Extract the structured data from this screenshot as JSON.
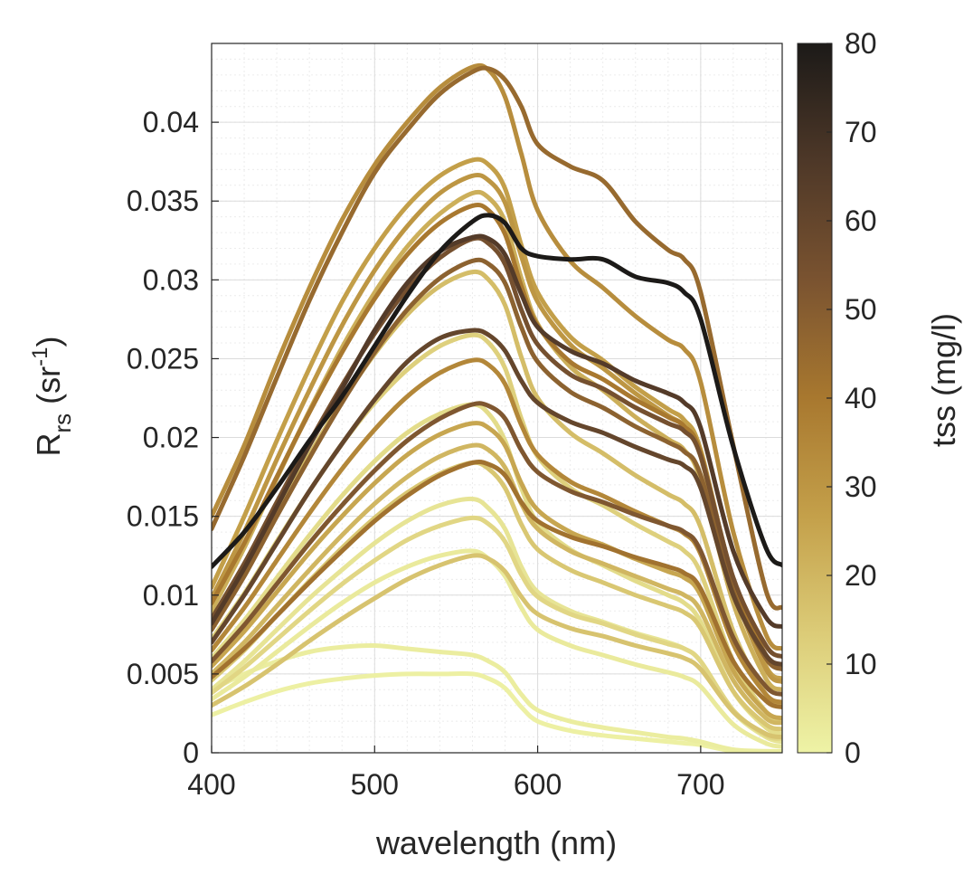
{
  "chart_data": {
    "type": "line",
    "x_label": "wavelength (nm)",
    "y_label_main": "R",
    "y_label_sub": "rs",
    "y_label_unit_open": " (sr",
    "y_label_unit_sup": "-1",
    "y_label_unit_close": ")",
    "xlim": [
      400,
      750
    ],
    "ylim": [
      0,
      0.045
    ],
    "x_ticks": [
      400,
      500,
      600,
      700
    ],
    "x_tick_labels": [
      "400",
      "500",
      "600",
      "700"
    ],
    "y_ticks": [
      0,
      0.005,
      0.01,
      0.015,
      0.02,
      0.025,
      0.03,
      0.035,
      0.04
    ],
    "y_tick_labels": [
      "0",
      "0.005",
      "0.01",
      "0.015",
      "0.02",
      "0.025",
      "0.03",
      "0.035",
      "0.04"
    ],
    "grid": true,
    "minor_grid": true,
    "colorbar": {
      "label": "tss (mg/l)",
      "range": [
        0,
        80
      ],
      "ticks": [
        0,
        10,
        20,
        30,
        40,
        50,
        60,
        70,
        80
      ],
      "tick_labels": [
        "0",
        "10",
        "20",
        "30",
        "40",
        "50",
        "60",
        "70",
        "80"
      ],
      "colors": [
        "#eef3a6",
        "#dccc78",
        "#c4a04a",
        "#a8782f",
        "#7a5330",
        "#4e3828",
        "#1c1a18"
      ]
    },
    "wavelengths": [
      400,
      420,
      440,
      460,
      480,
      500,
      520,
      540,
      560,
      570,
      580,
      590,
      600,
      620,
      640,
      660,
      680,
      690,
      700,
      720,
      740,
      750
    ],
    "series": [
      {
        "tss": 45,
        "values": [
          0.0142,
          0.0188,
          0.0238,
          0.0287,
          0.033,
          0.0368,
          0.0395,
          0.0418,
          0.0432,
          0.0434,
          0.0427,
          0.041,
          0.0386,
          0.0372,
          0.0363,
          0.0337,
          0.0319,
          0.0313,
          0.0292,
          0.0195,
          0.0103,
          0.0092
        ]
      },
      {
        "tss": 33,
        "values": [
          0.015,
          0.0195,
          0.0247,
          0.0295,
          0.0338,
          0.0373,
          0.04,
          0.0422,
          0.0435,
          0.0433,
          0.0416,
          0.038,
          0.0344,
          0.0312,
          0.0295,
          0.0277,
          0.0262,
          0.0256,
          0.0235,
          0.014,
          0.0075,
          0.0066
        ]
      },
      {
        "tss": 80,
        "values": [
          0.0118,
          0.014,
          0.0168,
          0.0198,
          0.0226,
          0.0258,
          0.029,
          0.0318,
          0.0337,
          0.0341,
          0.0336,
          0.032,
          0.0315,
          0.0313,
          0.0313,
          0.0302,
          0.0298,
          0.0292,
          0.0275,
          0.0194,
          0.013,
          0.0119
        ]
      },
      {
        "tss": 65,
        "values": [
          0.0082,
          0.0117,
          0.0156,
          0.0195,
          0.0231,
          0.0268,
          0.0298,
          0.0318,
          0.0327,
          0.0326,
          0.0316,
          0.0291,
          0.027,
          0.0255,
          0.0247,
          0.0236,
          0.0228,
          0.0222,
          0.0206,
          0.0128,
          0.0086,
          0.008
        ]
      },
      {
        "tss": 27,
        "values": [
          0.0105,
          0.015,
          0.0198,
          0.0244,
          0.0286,
          0.032,
          0.0347,
          0.0366,
          0.0376,
          0.0373,
          0.0358,
          0.0322,
          0.0292,
          0.0264,
          0.0249,
          0.0232,
          0.0218,
          0.0211,
          0.0192,
          0.0108,
          0.0055,
          0.0047
        ]
      },
      {
        "tss": 30,
        "values": [
          0.0098,
          0.014,
          0.0186,
          0.023,
          0.0271,
          0.0306,
          0.0334,
          0.0355,
          0.0366,
          0.0363,
          0.0349,
          0.0315,
          0.0286,
          0.0259,
          0.0244,
          0.0228,
          0.0214,
          0.0207,
          0.0188,
          0.0105,
          0.0053,
          0.0045
        ]
      },
      {
        "tss": 22,
        "values": [
          0.009,
          0.013,
          0.0174,
          0.0217,
          0.0257,
          0.0292,
          0.0321,
          0.0342,
          0.0355,
          0.0352,
          0.0337,
          0.0301,
          0.0272,
          0.0245,
          0.023,
          0.0213,
          0.0199,
          0.0192,
          0.0173,
          0.0095,
          0.0047,
          0.004
        ]
      },
      {
        "tss": 40,
        "values": [
          0.0095,
          0.0133,
          0.0175,
          0.0216,
          0.0254,
          0.0288,
          0.0316,
          0.0336,
          0.0347,
          0.0344,
          0.0329,
          0.0296,
          0.0271,
          0.0248,
          0.0237,
          0.0224,
          0.0213,
          0.0207,
          0.019,
          0.011,
          0.0062,
          0.0055
        ]
      },
      {
        "tss": 55,
        "values": [
          0.0085,
          0.012,
          0.0159,
          0.0197,
          0.0233,
          0.0266,
          0.0294,
          0.0314,
          0.0326,
          0.0323,
          0.031,
          0.0281,
          0.0259,
          0.024,
          0.0231,
          0.0219,
          0.0209,
          0.0204,
          0.0188,
          0.0111,
          0.0068,
          0.0061
        ]
      },
      {
        "tss": 48,
        "values": [
          0.0078,
          0.0112,
          0.015,
          0.0187,
          0.0222,
          0.0254,
          0.0281,
          0.0301,
          0.0312,
          0.031,
          0.0298,
          0.027,
          0.0248,
          0.0229,
          0.0219,
          0.0207,
          0.0197,
          0.0191,
          0.0176,
          0.0102,
          0.006,
          0.0053
        ]
      },
      {
        "tss": 18,
        "values": [
          0.0082,
          0.0115,
          0.0152,
          0.0189,
          0.0223,
          0.0253,
          0.0278,
          0.0296,
          0.0305,
          0.03,
          0.0284,
          0.0251,
          0.0225,
          0.0203,
          0.019,
          0.0176,
          0.0164,
          0.0158,
          0.0143,
          0.0077,
          0.0037,
          0.0031
        ]
      },
      {
        "tss": 60,
        "values": [
          0.007,
          0.01,
          0.0133,
          0.0166,
          0.0196,
          0.0224,
          0.0248,
          0.0263,
          0.0268,
          0.0265,
          0.0255,
          0.0236,
          0.0222,
          0.021,
          0.0203,
          0.0194,
          0.0186,
          0.0182,
          0.0168,
          0.01,
          0.0062,
          0.0056
        ]
      },
      {
        "tss": 12,
        "values": [
          0.0072,
          0.0101,
          0.0134,
          0.0166,
          0.0196,
          0.0222,
          0.0243,
          0.0258,
          0.0265,
          0.026,
          0.0244,
          0.0212,
          0.0188,
          0.0168,
          0.0157,
          0.0145,
          0.0134,
          0.0128,
          0.0114,
          0.0058,
          0.0026,
          0.0021
        ]
      },
      {
        "tss": 35,
        "values": [
          0.0065,
          0.0092,
          0.0122,
          0.0152,
          0.018,
          0.0205,
          0.0226,
          0.0241,
          0.0249,
          0.0246,
          0.0234,
          0.0208,
          0.0189,
          0.0172,
          0.0163,
          0.0153,
          0.0144,
          0.0139,
          0.0126,
          0.0069,
          0.0037,
          0.0032
        ]
      },
      {
        "tss": 52,
        "values": [
          0.0058,
          0.0081,
          0.0107,
          0.0133,
          0.0157,
          0.0179,
          0.0198,
          0.0212,
          0.0221,
          0.022,
          0.0212,
          0.0192,
          0.0178,
          0.0166,
          0.0159,
          0.0151,
          0.0144,
          0.014,
          0.0128,
          0.0073,
          0.0042,
          0.0037
        ]
      },
      {
        "tss": 8,
        "values": [
          0.006,
          0.0084,
          0.0111,
          0.0138,
          0.0163,
          0.0185,
          0.0203,
          0.0215,
          0.0221,
          0.0215,
          0.0198,
          0.0168,
          0.0146,
          0.0129,
          0.0119,
          0.0109,
          0.01,
          0.0095,
          0.0083,
          0.0039,
          0.0016,
          0.0012
        ]
      },
      {
        "tss": 25,
        "values": [
          0.0055,
          0.0077,
          0.0102,
          0.0127,
          0.015,
          0.0171,
          0.0189,
          0.0202,
          0.0209,
          0.0206,
          0.0195,
          0.0171,
          0.0154,
          0.014,
          0.0132,
          0.0123,
          0.0115,
          0.0111,
          0.01,
          0.0052,
          0.0026,
          0.0022
        ]
      },
      {
        "tss": 20,
        "values": [
          0.005,
          0.007,
          0.0093,
          0.0116,
          0.0138,
          0.0158,
          0.0175,
          0.0188,
          0.0195,
          0.0192,
          0.0181,
          0.0158,
          0.0142,
          0.0128,
          0.012,
          0.0112,
          0.0104,
          0.01,
          0.009,
          0.0046,
          0.0022,
          0.0019
        ]
      },
      {
        "tss": 15,
        "values": [
          0.0046,
          0.0065,
          0.0087,
          0.0109,
          0.013,
          0.0149,
          0.0165,
          0.0177,
          0.0184,
          0.018,
          0.0168,
          0.0145,
          0.0129,
          0.0116,
          0.0108,
          0.01,
          0.0093,
          0.0089,
          0.0079,
          0.0039,
          0.0018,
          0.0015
        ]
      },
      {
        "tss": 42,
        "values": [
          0.0048,
          0.0066,
          0.0087,
          0.0108,
          0.0128,
          0.0147,
          0.0163,
          0.0176,
          0.0184,
          0.0183,
          0.0176,
          0.0159,
          0.0147,
          0.0137,
          0.0131,
          0.0124,
          0.0118,
          0.0114,
          0.0104,
          0.0058,
          0.0033,
          0.0029
        ]
      },
      {
        "tss": 5,
        "values": [
          0.004,
          0.0058,
          0.0078,
          0.0098,
          0.0116,
          0.0133,
          0.0147,
          0.0157,
          0.0161,
          0.0155,
          0.0142,
          0.0118,
          0.0102,
          0.009,
          0.0083,
          0.0076,
          0.007,
          0.0066,
          0.0058,
          0.0026,
          0.001,
          0.0007
        ]
      },
      {
        "tss": 10,
        "values": [
          0.0038,
          0.0054,
          0.0072,
          0.009,
          0.0107,
          0.0122,
          0.0135,
          0.0144,
          0.0149,
          0.0145,
          0.0134,
          0.0113,
          0.0099,
          0.0088,
          0.0082,
          0.0075,
          0.0069,
          0.0066,
          0.0058,
          0.0027,
          0.0011,
          0.0009
        ]
      },
      {
        "tss": 3,
        "values": [
          0.0034,
          0.0048,
          0.0064,
          0.008,
          0.0095,
          0.0108,
          0.0118,
          0.0125,
          0.0128,
          0.0123,
          0.0112,
          0.0092,
          0.0078,
          0.0068,
          0.0062,
          0.0056,
          0.0051,
          0.0048,
          0.0042,
          0.0018,
          0.0006,
          0.0004
        ]
      },
      {
        "tss": 16,
        "values": [
          0.003,
          0.0042,
          0.0056,
          0.0071,
          0.0085,
          0.0098,
          0.011,
          0.0119,
          0.0125,
          0.0123,
          0.0115,
          0.0099,
          0.0088,
          0.0079,
          0.0074,
          0.0068,
          0.0063,
          0.006,
          0.0053,
          0.0026,
          0.0012,
          0.001
        ]
      },
      {
        "tss": 2,
        "values": [
          0.004,
          0.005,
          0.0058,
          0.0064,
          0.0067,
          0.0068,
          0.0066,
          0.0064,
          0.0062,
          0.0058,
          0.0051,
          0.0037,
          0.0027,
          0.002,
          0.0016,
          0.0013,
          0.001,
          0.0009,
          0.0007,
          0.0002,
          0.0001,
          0.0001
        ]
      },
      {
        "tss": 1,
        "values": [
          0.0024,
          0.0032,
          0.0039,
          0.0044,
          0.0047,
          0.0049,
          0.005,
          0.005,
          0.005,
          0.0047,
          0.0041,
          0.0029,
          0.002,
          0.0014,
          0.0011,
          0.0009,
          0.0007,
          0.0006,
          0.0005,
          0.0001,
          0.0,
          0.0
        ]
      }
    ]
  }
}
